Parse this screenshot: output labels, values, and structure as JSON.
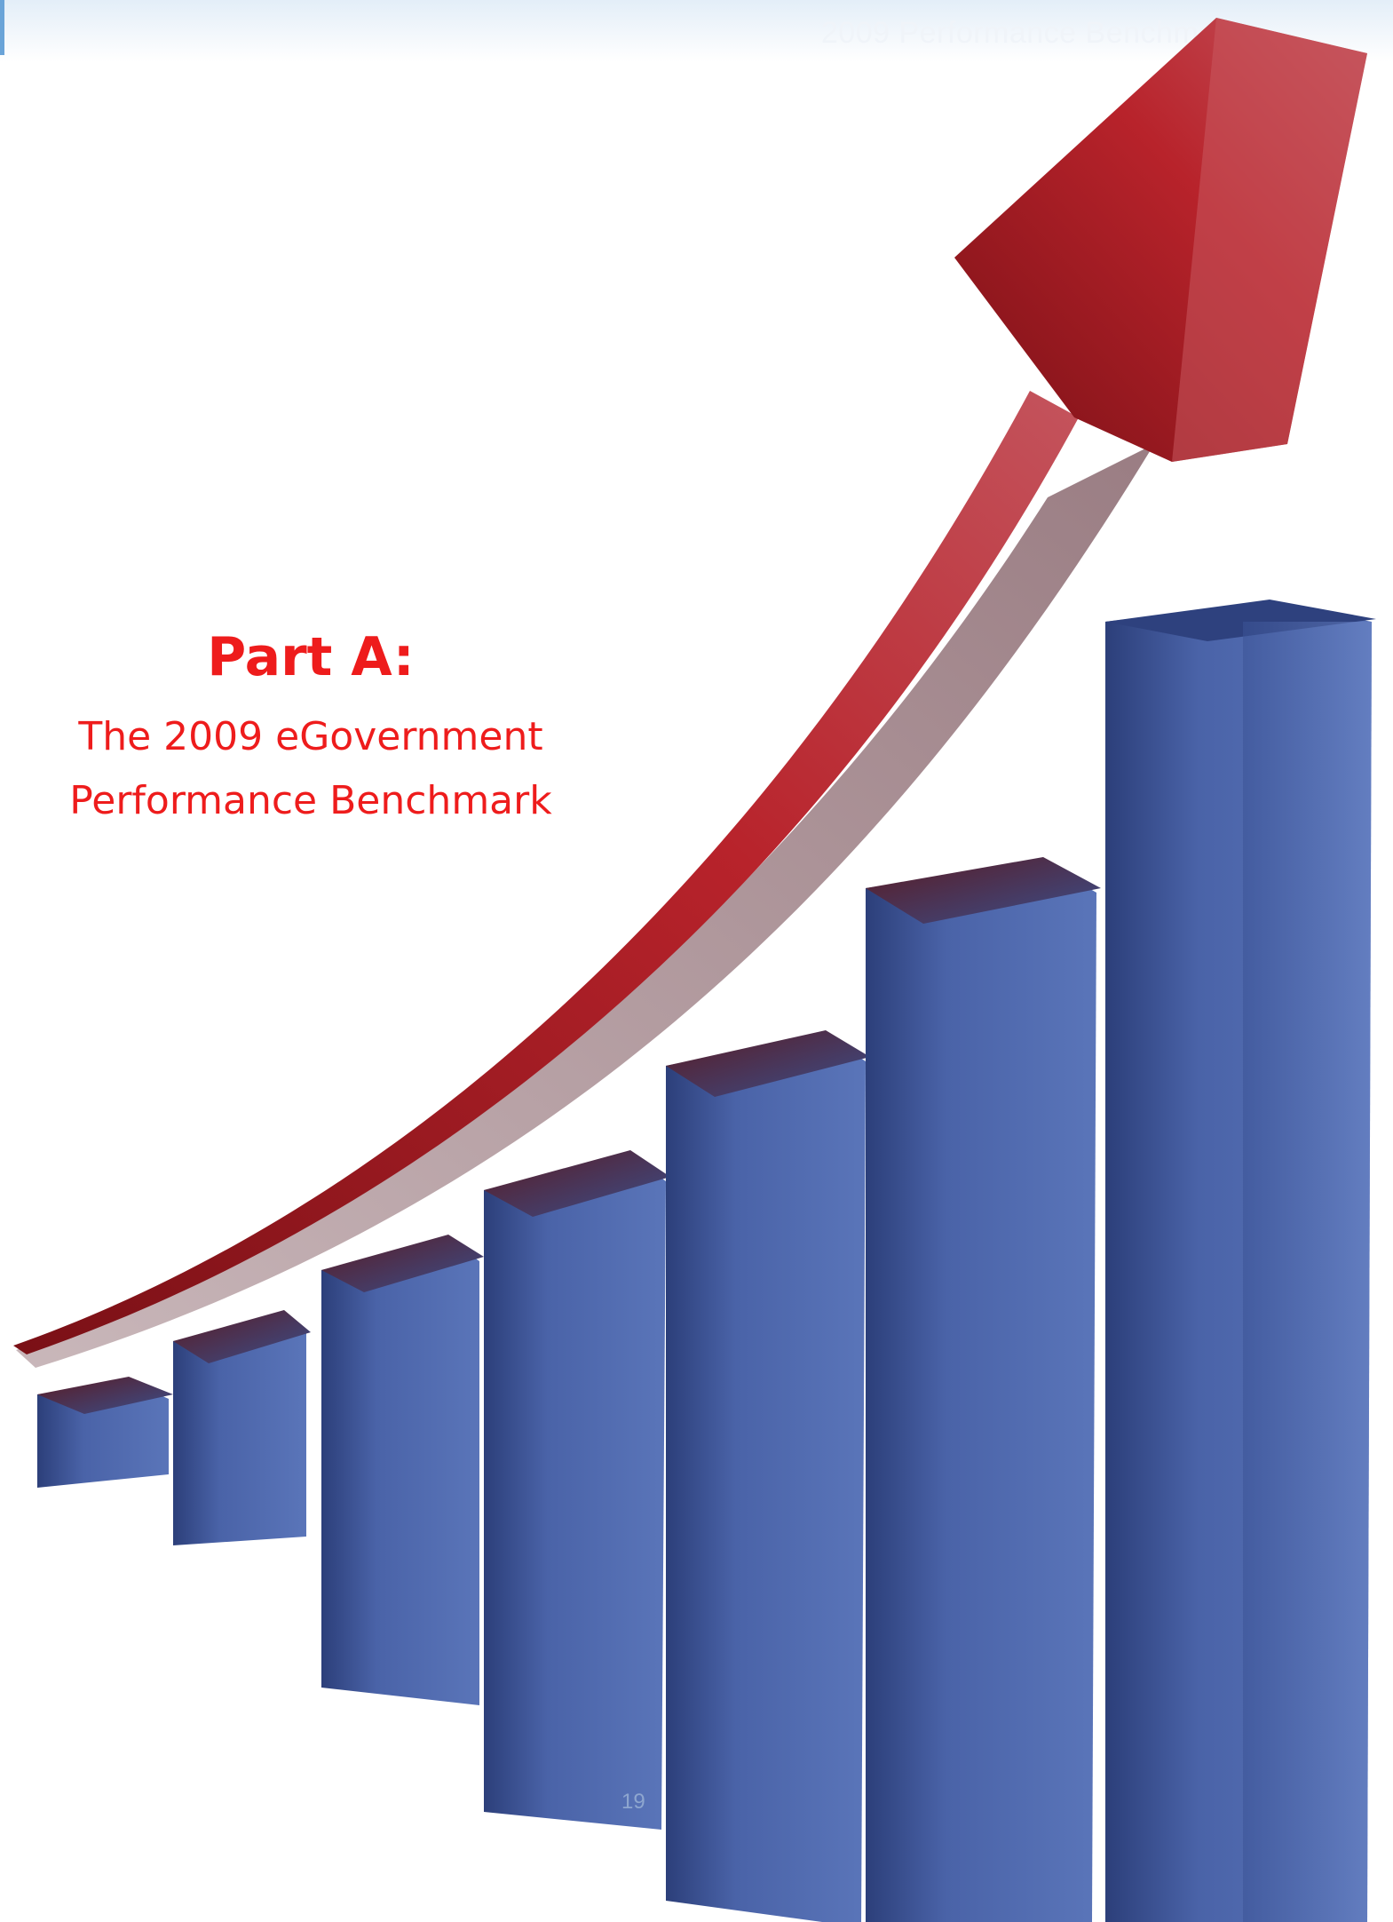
{
  "header": {
    "running_title": "2009 Performance Benchmark"
  },
  "part": {
    "title": "Part A:",
    "subtitle_line1": "The 2009 eGovernment",
    "subtitle_line2": "Performance Benchmark"
  },
  "page": {
    "number": "19"
  },
  "colors": {
    "title_red": "#ee1c1c",
    "arrow_red": "#b8232b",
    "bar_blue": "#4a63a8",
    "header_blue": "#e3eef8"
  }
}
